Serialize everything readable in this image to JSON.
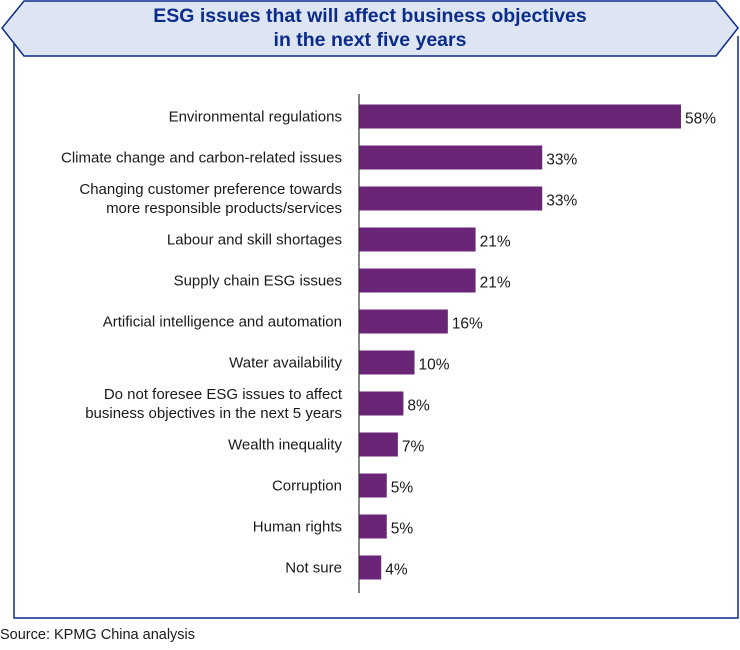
{
  "title": {
    "line1": "ESG issues that will affect business objectives",
    "line2": "in the next five years"
  },
  "source": "Source: KPMG China analysis",
  "colors": {
    "bar": "#6a2577",
    "title": "#0b2c8a",
    "frame": "#0b2c8a",
    "banner_fill": "#dde5f3",
    "axis": "#333333"
  },
  "chart_data": {
    "type": "bar",
    "orientation": "horizontal",
    "categories": [
      [
        "Environmental regulations"
      ],
      [
        "Climate change and carbon-related issues"
      ],
      [
        "Changing customer preference towards",
        "more responsible products/services"
      ],
      [
        "Labour and skill shortages"
      ],
      [
        "Supply chain ESG issues"
      ],
      [
        "Artificial intelligence and automation"
      ],
      [
        "Water availability"
      ],
      [
        "Do not foresee ESG issues to affect",
        "business objectives in the next 5 years"
      ],
      [
        "Wealth inequality"
      ],
      [
        "Corruption"
      ],
      [
        "Human rights"
      ],
      [
        "Not sure"
      ]
    ],
    "values": [
      58,
      33,
      33,
      21,
      21,
      16,
      10,
      8,
      7,
      5,
      5,
      4
    ],
    "value_labels": [
      "58%",
      "33%",
      "33%",
      "21%",
      "21%",
      "16%",
      "10%",
      "8%",
      "7%",
      "5%",
      "5%",
      "4%"
    ],
    "title": "ESG issues that will affect business objectives in the next five years",
    "grid": false,
    "legend": "none"
  }
}
